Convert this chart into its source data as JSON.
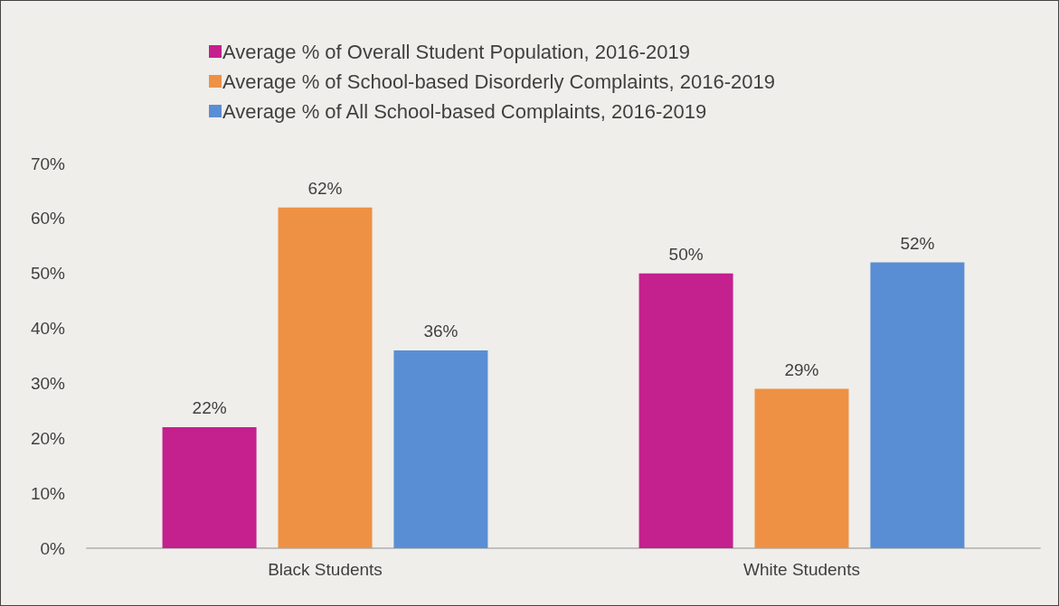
{
  "chart_data": {
    "type": "bar",
    "categories": [
      "Black Students",
      "White Students"
    ],
    "series": [
      {
        "name": "Average % of Overall Student Population, 2016-2019",
        "color": "#c4208e",
        "values": [
          22,
          50
        ],
        "value_labels": [
          "22%",
          "50%"
        ]
      },
      {
        "name": "Average % of School-based Disorderly Complaints, 2016-2019",
        "color": "#ee9145",
        "values": [
          62,
          29
        ],
        "value_labels": [
          "62%",
          "29%"
        ]
      },
      {
        "name": "Average % of All School-based Complaints, 2016-2019",
        "color": "#5a8ed4",
        "values": [
          36,
          52
        ],
        "value_labels": [
          "36%",
          "52%"
        ]
      }
    ],
    "ylim": [
      0,
      70
    ],
    "yticks": [
      {
        "value": 0,
        "label": "0%"
      },
      {
        "value": 10,
        "label": "10%"
      },
      {
        "value": 20,
        "label": "20%"
      },
      {
        "value": 30,
        "label": "30%"
      },
      {
        "value": 40,
        "label": "40%"
      },
      {
        "value": 50,
        "label": "50%"
      },
      {
        "value": 60,
        "label": "60%"
      },
      {
        "value": 70,
        "label": "70%"
      }
    ],
    "grid": false,
    "legend": "top left"
  }
}
